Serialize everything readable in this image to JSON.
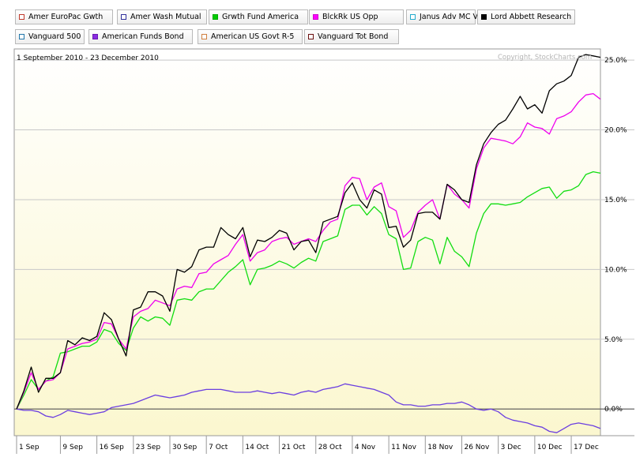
{
  "legend": [
    {
      "label": "Amer EuroPac Gwth",
      "color": "#ffffff",
      "border": "#c0392b",
      "active": false
    },
    {
      "label": "Amer Wash Mutual",
      "color": "#ffffff",
      "border": "#2f2f9b",
      "active": false
    },
    {
      "label": "Grwth Fund America",
      "color": "#00cc00",
      "border": "#00aa00",
      "active": true
    },
    {
      "label": "BlckRk US Opp",
      "color": "#ff00ff",
      "border": "#cc00cc",
      "active": true
    },
    {
      "label": "Janus Adv MC Val",
      "color": "#ffffff",
      "border": "#22aacc",
      "active": false
    },
    {
      "label": "Lord Abbett Research",
      "color": "#000000",
      "border": "#000000",
      "active": true
    },
    {
      "label": "Vanguard 500",
      "color": "#ffffff",
      "border": "#2277aa",
      "active": false
    },
    {
      "label": "American Funds Bond",
      "color": "#8a2be2",
      "border": "#6a1bb2",
      "active": true
    },
    {
      "label": "American US Govt R-5",
      "color": "#ffffff",
      "border": "#d08040",
      "active": false
    },
    {
      "label": "Vanguard Tot Bond",
      "color": "#ffffff",
      "border": "#6b1010",
      "active": false
    }
  ],
  "chart_data": {
    "type": "line",
    "title": "1 September 2010 - 23 December 2010",
    "watermark": "Copyright, StockCharts.com",
    "ylim": [
      -1.8,
      25.8
    ],
    "yticks": [
      0,
      5,
      10,
      15,
      20,
      25
    ],
    "ytick_labels": [
      "0.0%",
      "5.0%",
      "10.0%",
      "15.0%",
      "20.0%",
      "25.0%"
    ],
    "xlabels": [
      "1 Sep",
      "9 Sep",
      "16 Sep",
      "23 Sep",
      "30 Sep",
      "7 Oct",
      "14 Oct",
      "21 Oct",
      "28 Oct",
      "4 Nov",
      "11 Nov",
      "18 Nov",
      "26 Nov",
      "3 Dec",
      "10 Dec",
      "17 Dec"
    ],
    "xlabel_index": [
      0,
      6,
      11,
      16,
      21,
      26,
      31,
      36,
      41,
      46,
      51,
      56,
      61,
      66,
      71,
      76
    ],
    "n_points": 81,
    "series": [
      {
        "name": "American Funds Bond",
        "color": "#6b3fe0",
        "values": [
          0.0,
          -0.1,
          -0.1,
          -0.2,
          -0.5,
          -0.6,
          -0.4,
          -0.1,
          -0.2,
          -0.3,
          -0.4,
          -0.3,
          -0.2,
          0.1,
          0.2,
          0.3,
          0.4,
          0.6,
          0.8,
          1.0,
          0.9,
          0.8,
          0.9,
          1.0,
          1.2,
          1.3,
          1.4,
          1.4,
          1.4,
          1.3,
          1.2,
          1.2,
          1.2,
          1.3,
          1.2,
          1.1,
          1.2,
          1.1,
          1.0,
          1.2,
          1.3,
          1.2,
          1.4,
          1.5,
          1.6,
          1.8,
          1.7,
          1.6,
          1.5,
          1.4,
          1.2,
          1.0,
          0.5,
          0.3,
          0.3,
          0.2,
          0.2,
          0.3,
          0.3,
          0.4,
          0.4,
          0.5,
          0.3,
          0.0,
          -0.1,
          0.0,
          -0.2,
          -0.6,
          -0.8,
          -0.9,
          -1.0,
          -1.2,
          -1.3,
          -1.6,
          -1.7,
          -1.4,
          -1.1,
          -1.0,
          -1.1,
          -1.2,
          -1.4
        ]
      },
      {
        "name": "Grwth Fund America",
        "color": "#11dd11",
        "values": [
          0.0,
          1.0,
          2.1,
          1.4,
          2.0,
          2.3,
          4.0,
          4.1,
          4.3,
          4.5,
          4.5,
          4.8,
          5.7,
          5.5,
          4.7,
          4.2,
          5.8,
          6.6,
          6.3,
          6.6,
          6.5,
          6.0,
          7.8,
          7.9,
          7.8,
          8.4,
          8.6,
          8.6,
          9.2,
          9.8,
          10.2,
          10.7,
          8.9,
          10.0,
          10.1,
          10.3,
          10.6,
          10.4,
          10.1,
          10.5,
          10.8,
          10.6,
          12.0,
          12.2,
          12.4,
          14.3,
          14.6,
          14.6,
          13.9,
          14.5,
          14.0,
          12.5,
          12.2,
          10.0,
          10.1,
          12.0,
          12.3,
          12.1,
          10.4,
          12.3,
          11.3,
          10.9,
          10.2,
          12.6,
          14.0,
          14.7,
          14.7,
          14.6,
          14.7,
          14.8,
          15.2,
          15.5,
          15.8,
          15.9,
          15.1,
          15.6,
          15.7,
          16.0,
          16.8,
          17.0,
          16.9
        ]
      },
      {
        "name": "BlckRk US Opp",
        "color": "#ee00ee",
        "values": [
          0.0,
          1.2,
          2.6,
          1.4,
          2.0,
          2.1,
          2.6,
          4.3,
          4.5,
          4.7,
          4.8,
          5.0,
          6.2,
          6.1,
          5.0,
          4.3,
          6.6,
          7.0,
          7.2,
          7.8,
          7.6,
          7.4,
          8.6,
          8.8,
          8.7,
          9.7,
          9.8,
          10.4,
          10.7,
          11.0,
          11.8,
          12.5,
          10.6,
          11.2,
          11.4,
          12.0,
          12.2,
          12.3,
          11.8,
          12.0,
          12.2,
          12.0,
          12.8,
          13.4,
          13.6,
          16.0,
          16.6,
          16.5,
          15.0,
          15.9,
          16.2,
          14.5,
          14.2,
          12.3,
          12.8,
          14.1,
          14.6,
          15.0,
          13.6,
          16.1,
          15.4,
          15.0,
          14.4,
          17.2,
          18.7,
          19.4,
          19.3,
          19.2,
          19.0,
          19.5,
          20.5,
          20.2,
          20.1,
          19.7,
          20.8,
          21.0,
          21.3,
          22.0,
          22.5,
          22.6,
          22.2
        ]
      },
      {
        "name": "Lord Abbett Research",
        "color": "#000000",
        "values": [
          0.0,
          1.3,
          3.0,
          1.2,
          2.2,
          2.2,
          2.6,
          4.9,
          4.6,
          5.1,
          4.9,
          5.2,
          6.9,
          6.4,
          5.0,
          3.8,
          7.1,
          7.3,
          8.4,
          8.4,
          8.1,
          7.0,
          10.0,
          9.8,
          10.2,
          11.4,
          11.6,
          11.6,
          13.0,
          12.5,
          12.2,
          13.0,
          10.9,
          12.1,
          12.0,
          12.3,
          12.8,
          12.6,
          11.4,
          12.0,
          12.1,
          11.2,
          13.4,
          13.6,
          13.8,
          15.5,
          16.2,
          15.0,
          14.4,
          15.7,
          15.4,
          13.0,
          13.1,
          11.6,
          12.1,
          14.0,
          14.1,
          14.1,
          13.6,
          16.1,
          15.7,
          15.0,
          14.8,
          17.5,
          19.0,
          19.8,
          20.4,
          20.7,
          21.5,
          22.4,
          21.5,
          21.8,
          21.2,
          22.8,
          23.3,
          23.5,
          23.9,
          25.2,
          25.4,
          25.3,
          25.2
        ]
      }
    ]
  }
}
